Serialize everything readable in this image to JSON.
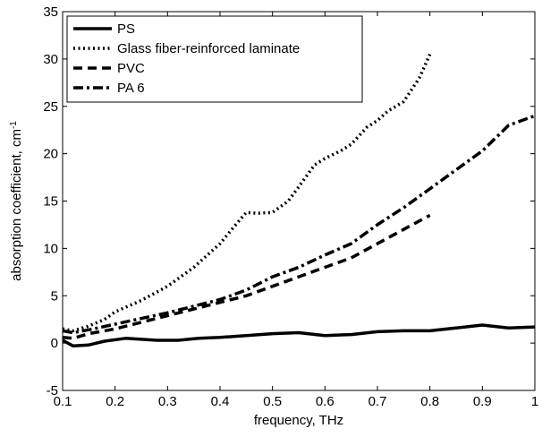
{
  "chart_data": {
    "type": "line",
    "xlabel": "frequency, THz",
    "ylabel": "absorption coefficient, cm",
    "ylabel_superscript": "-1",
    "xlim": [
      0.1,
      1.0
    ],
    "ylim": [
      -5,
      35
    ],
    "xticks": [
      0.1,
      0.2,
      0.3,
      0.4,
      0.5,
      0.6,
      0.7,
      0.8,
      0.9,
      1.0
    ],
    "xtick_labels": [
      "0.1",
      "0.2",
      "0.3",
      "0.4",
      "0.5",
      "0.6",
      "0.7",
      "0.8",
      "0.9",
      "1"
    ],
    "yticks": [
      -5,
      0,
      5,
      10,
      15,
      20,
      25,
      30,
      35
    ],
    "ytick_labels": [
      "-5",
      "0",
      "5",
      "10",
      "15",
      "20",
      "25",
      "30",
      "35"
    ],
    "grid": false,
    "legend_position": "top-left",
    "series": [
      {
        "name": "PS",
        "style": "solid",
        "color": "#000000",
        "x": [
          0.1,
          0.12,
          0.15,
          0.18,
          0.22,
          0.25,
          0.28,
          0.32,
          0.36,
          0.4,
          0.45,
          0.5,
          0.55,
          0.6,
          0.65,
          0.7,
          0.75,
          0.8,
          0.85,
          0.9,
          0.95,
          1.0
        ],
        "y": [
          0.3,
          -0.3,
          -0.2,
          0.2,
          0.5,
          0.4,
          0.3,
          0.3,
          0.5,
          0.6,
          0.8,
          1.0,
          1.1,
          0.8,
          0.9,
          1.2,
          1.3,
          1.3,
          1.6,
          1.9,
          1.6,
          1.7
        ]
      },
      {
        "name": "Glass fiber-reinforced laminate",
        "style": "dotted",
        "color": "#000000",
        "x": [
          0.1,
          0.12,
          0.15,
          0.18,
          0.2,
          0.25,
          0.3,
          0.35,
          0.4,
          0.43,
          0.45,
          0.47,
          0.5,
          0.53,
          0.55,
          0.58,
          0.6,
          0.63,
          0.65,
          0.68,
          0.7,
          0.72,
          0.75,
          0.78,
          0.8
        ],
        "y": [
          1.5,
          1.3,
          1.8,
          2.5,
          3.3,
          4.5,
          6.0,
          8.0,
          10.5,
          12.5,
          13.8,
          13.7,
          13.8,
          15.0,
          16.5,
          18.8,
          19.5,
          20.3,
          21.0,
          22.8,
          23.5,
          24.5,
          25.5,
          28.0,
          30.5
        ]
      },
      {
        "name": "PVC",
        "style": "dashed",
        "color": "#000000",
        "x": [
          0.1,
          0.12,
          0.15,
          0.2,
          0.25,
          0.3,
          0.35,
          0.4,
          0.45,
          0.5,
          0.55,
          0.6,
          0.65,
          0.7,
          0.75,
          0.8
        ],
        "y": [
          0.6,
          0.5,
          1.0,
          1.5,
          2.2,
          2.9,
          3.6,
          4.3,
          5.0,
          6.0,
          7.0,
          8.0,
          9.0,
          10.5,
          12.0,
          13.5
        ]
      },
      {
        "name": "PA 6",
        "style": "dashdot",
        "color": "#000000",
        "x": [
          0.1,
          0.12,
          0.15,
          0.2,
          0.25,
          0.3,
          0.35,
          0.4,
          0.45,
          0.5,
          0.55,
          0.6,
          0.65,
          0.7,
          0.75,
          0.8,
          0.85,
          0.9,
          0.95,
          1.0
        ],
        "y": [
          1.3,
          1.1,
          1.4,
          2.0,
          2.6,
          3.2,
          3.9,
          4.6,
          5.6,
          7.0,
          8.0,
          9.3,
          10.5,
          12.5,
          14.3,
          16.3,
          18.3,
          20.3,
          23.0,
          24.0
        ]
      }
    ]
  }
}
